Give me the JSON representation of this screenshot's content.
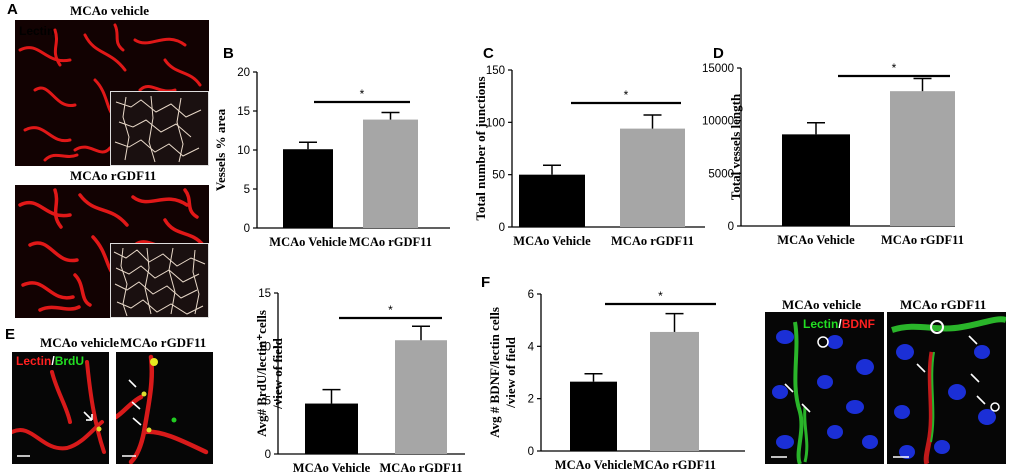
{
  "panels": {
    "A": {
      "letter": "A",
      "top_title": "MCAo vehicle",
      "bottom_title": "MCAo rGDF11",
      "stain": "Lectin",
      "stain_color": "#ff2020"
    },
    "B": {
      "letter": "B"
    },
    "C": {
      "letter": "C"
    },
    "D": {
      "letter": "D"
    },
    "E": {
      "letter": "E",
      "left_title": "MCAo vehicle",
      "right_title": "MCAo rGDF11",
      "stain1": "Lectin",
      "sep": "/",
      "stain2": "BrdU",
      "stain1_color": "#ff2020",
      "stain2_color": "#22dd22"
    },
    "F": {
      "letter": "F",
      "left_title": "MCAo vehicle",
      "right_title": "MCAo rGDF11",
      "stain1": "Lectin",
      "sep": "/",
      "stain2": "BDNF",
      "stain1_color": "#22dd22",
      "stain2_color": "#ff2020"
    }
  },
  "colors": {
    "vehicle_bar": "#000000",
    "rgdf11_bar": "#a6a6a6"
  },
  "chart_data": [
    {
      "id": "B",
      "type": "bar",
      "categories": [
        "MCAo Vehicle",
        "MCAo rGDF11"
      ],
      "values": [
        10.1,
        13.9
      ],
      "errors": [
        0.9,
        0.9
      ],
      "ylabel": "Vessels % area",
      "ylim": [
        0,
        20
      ],
      "yticks": [
        0,
        5,
        10,
        15,
        20
      ],
      "significance": "*"
    },
    {
      "id": "C",
      "type": "bar",
      "categories": [
        "MCAo Vehicle",
        "MCAo rGDF11"
      ],
      "values": [
        50,
        94
      ],
      "errors": [
        9,
        13
      ],
      "ylabel": "Total number of junctions",
      "ylim": [
        0,
        150
      ],
      "yticks": [
        0,
        50,
        100,
        150
      ],
      "significance": "*"
    },
    {
      "id": "D",
      "type": "bar",
      "categories": [
        "MCAo Vehicle",
        "MCAo rGDF11"
      ],
      "values": [
        8700,
        12800
      ],
      "errors": [
        1100,
        1200
      ],
      "ylabel": "Total vessels length",
      "ylim": [
        0,
        15000
      ],
      "yticks": [
        0,
        5000,
        10000,
        15000
      ],
      "significance": "*"
    },
    {
      "id": "E",
      "type": "bar",
      "categories": [
        "MCAo Vehicle",
        "MCAo rGDF11"
      ],
      "values": [
        4.7,
        10.6
      ],
      "errors": [
        1.3,
        1.3
      ],
      "ylabel": "Avg# BrdU/lectin⁺cells /view of field",
      "ylim": [
        0,
        15
      ],
      "yticks": [
        0,
        5,
        10,
        15
      ],
      "significance": "*"
    },
    {
      "id": "F",
      "type": "bar",
      "categories": [
        "MCAo Vehicle",
        "MCAo rGDF11"
      ],
      "values": [
        2.65,
        4.55
      ],
      "errors": [
        0.3,
        0.7
      ],
      "ylabel": "Avg # BDNF/lectin cells /view of field",
      "ylim": [
        0,
        6
      ],
      "yticks": [
        0,
        2,
        4,
        6
      ],
      "significance": "*"
    }
  ]
}
